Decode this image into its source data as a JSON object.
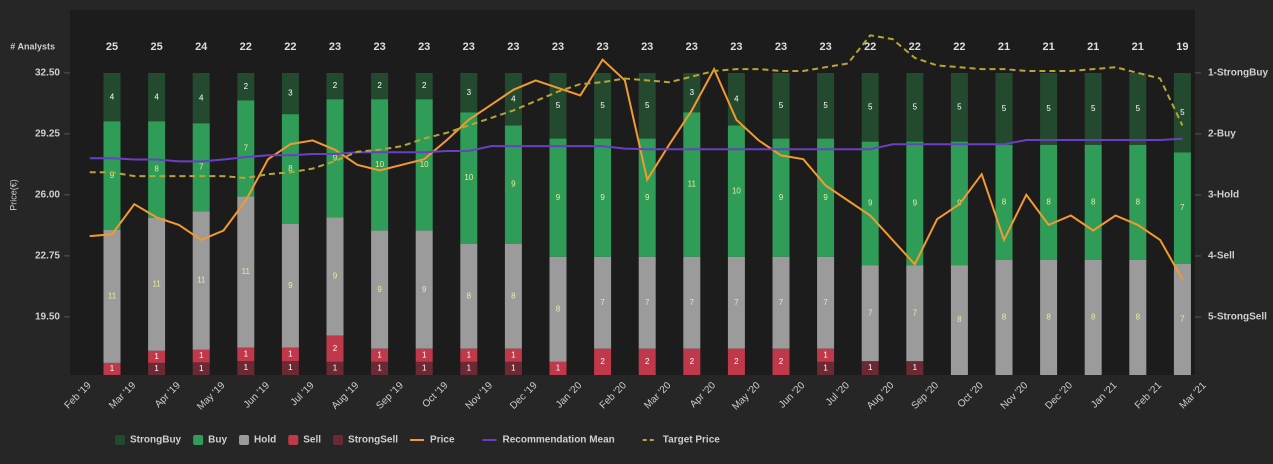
{
  "chart_data": {
    "type": "combo",
    "y_label": "Price(€)",
    "top_label": "# Analysts",
    "x": [
      "Feb '19",
      null,
      "Mar '19",
      null,
      "Apr '19",
      null,
      "May '19",
      null,
      "Jun '19",
      null,
      "Jul '19",
      null,
      "Aug '19",
      null,
      "Sep '19",
      null,
      "Oct '19",
      null,
      "Nov '19",
      null,
      "Dec '19",
      null,
      "Jan '20",
      null,
      "Feb '20",
      null,
      "Mar '20",
      null,
      "Apr '20",
      null,
      "May '20",
      null,
      "Jun '20",
      null,
      "Jul '20",
      null,
      "Aug '20",
      null,
      "Sep '20",
      null,
      "Oct '20",
      null,
      "Nov '20",
      null,
      "Dec '20",
      null,
      "Jan '21",
      null,
      "Feb '21",
      null,
      "Mar '21"
    ],
    "ylim": [
      16.4,
      35.85
    ],
    "yticks": [
      {
        "value": 19.5,
        "label": "19.50"
      },
      {
        "value": 22.75,
        "label": "22.75"
      },
      {
        "value": 26,
        "label": "26.00"
      },
      {
        "value": 29.25,
        "label": "29.25"
      },
      {
        "value": 32.5,
        "label": "32.50"
      }
    ],
    "y2lim": [
      5.95,
      -0.03
    ],
    "y2ticks": [
      {
        "value": 1,
        "label": "1-StrongBuy"
      },
      {
        "value": 2,
        "label": "2-Buy"
      },
      {
        "value": 3,
        "label": "3-Hold"
      },
      {
        "value": 4,
        "label": "4-Sell"
      },
      {
        "value": 5,
        "label": "5-StrongSell"
      }
    ],
    "analysts": [
      25,
      25,
      24,
      22,
      22,
      23,
      23,
      23,
      23,
      23,
      23,
      23,
      23,
      23,
      23,
      23,
      23,
      22,
      22,
      22,
      21,
      21,
      21,
      21,
      19
    ],
    "bar_series": [
      {
        "name": "StrongBuy",
        "color": "#234a2e",
        "values": [
          4,
          4,
          4,
          2,
          3,
          2,
          2,
          2,
          3,
          4,
          5,
          5,
          5,
          3,
          4,
          5,
          5,
          5,
          5,
          5,
          5,
          5,
          5,
          5,
          5
        ]
      },
      {
        "name": "Buy",
        "color": "#2f9c57",
        "values": [
          9,
          8,
          7,
          7,
          8,
          9,
          10,
          10,
          10,
          9,
          9,
          9,
          9,
          11,
          10,
          9,
          9,
          9,
          9,
          9,
          8,
          8,
          8,
          8,
          7
        ]
      },
      {
        "name": "Hold",
        "color": "#9b9b9b",
        "values": [
          11,
          11,
          11,
          11,
          9,
          9,
          9,
          9,
          8,
          8,
          8,
          7,
          7,
          7,
          7,
          7,
          7,
          7,
          7,
          8,
          8,
          8,
          8,
          8,
          7
        ]
      },
      {
        "name": "Sell",
        "color": "#c0394b",
        "values": [
          1,
          1,
          1,
          1,
          1,
          2,
          1,
          1,
          1,
          1,
          1,
          2,
          2,
          2,
          2,
          2,
          1,
          0,
          0,
          0,
          0,
          0,
          0,
          0,
          0
        ]
      },
      {
        "name": "StrongSell",
        "color": "#6b2a33",
        "values": [
          0,
          1,
          1,
          1,
          1,
          1,
          1,
          1,
          1,
          1,
          0,
          0,
          0,
          0,
          0,
          0,
          1,
          1,
          1,
          0,
          0,
          0,
          0,
          0,
          0
        ]
      }
    ],
    "line_series": [
      {
        "name": "Price",
        "color": "#f39a2e",
        "values": [
          23.8,
          23.9,
          25.5,
          24.8,
          24.4,
          23.6,
          24.1,
          25.7,
          27.9,
          28.7,
          28.9,
          28.4,
          27.6,
          27.3,
          27.6,
          27.9,
          28.9,
          30.0,
          30.8,
          31.6,
          32.1,
          31.7,
          31.3,
          33.2,
          32.1,
          26.8,
          28.7,
          30.5,
          32.7,
          30.0,
          28.9,
          28.1,
          27.9,
          26.5,
          25.7,
          24.9,
          23.6,
          22.3,
          24.7,
          25.5,
          27.1,
          23.6,
          26.0,
          24.4,
          24.9,
          24.1,
          24.9,
          24.4,
          23.6,
          21.5,
          null
        ]
      },
      {
        "name": "Recommendation Mean",
        "color": "#6b3fc4",
        "axis": "y2",
        "values": [
          2.4,
          2.4,
          2.42,
          2.42,
          2.45,
          2.45,
          2.42,
          2.38,
          2.35,
          2.35,
          2.33,
          2.33,
          2.3,
          2.3,
          2.3,
          2.3,
          2.28,
          2.28,
          2.2,
          2.2,
          2.2,
          2.2,
          2.2,
          2.2,
          2.24,
          2.25,
          2.25,
          2.25,
          2.25,
          2.25,
          2.25,
          2.25,
          2.25,
          2.25,
          2.25,
          2.25,
          2.17,
          2.17,
          2.17,
          2.17,
          2.17,
          2.17,
          2.1,
          2.1,
          2.1,
          2.1,
          2.1,
          2.1,
          2.1,
          2.08,
          null
        ]
      },
      {
        "name": "Target Price",
        "color": "#b8a533",
        "dashed": true,
        "values": [
          27.2,
          27.2,
          27.0,
          27.0,
          27.0,
          27.0,
          27.0,
          26.9,
          27.1,
          27.2,
          27.4,
          27.8,
          28.3,
          28.4,
          28.6,
          29.0,
          29.3,
          29.7,
          30.1,
          30.5,
          31.0,
          31.5,
          31.9,
          32.0,
          32.2,
          32.1,
          32.0,
          32.3,
          32.6,
          32.7,
          32.7,
          32.6,
          32.6,
          32.8,
          33.0,
          34.5,
          34.3,
          33.3,
          32.9,
          32.8,
          32.7,
          32.7,
          32.6,
          32.6,
          32.6,
          32.7,
          32.8,
          32.5,
          32.2,
          29.7,
          null
        ]
      }
    ]
  }
}
